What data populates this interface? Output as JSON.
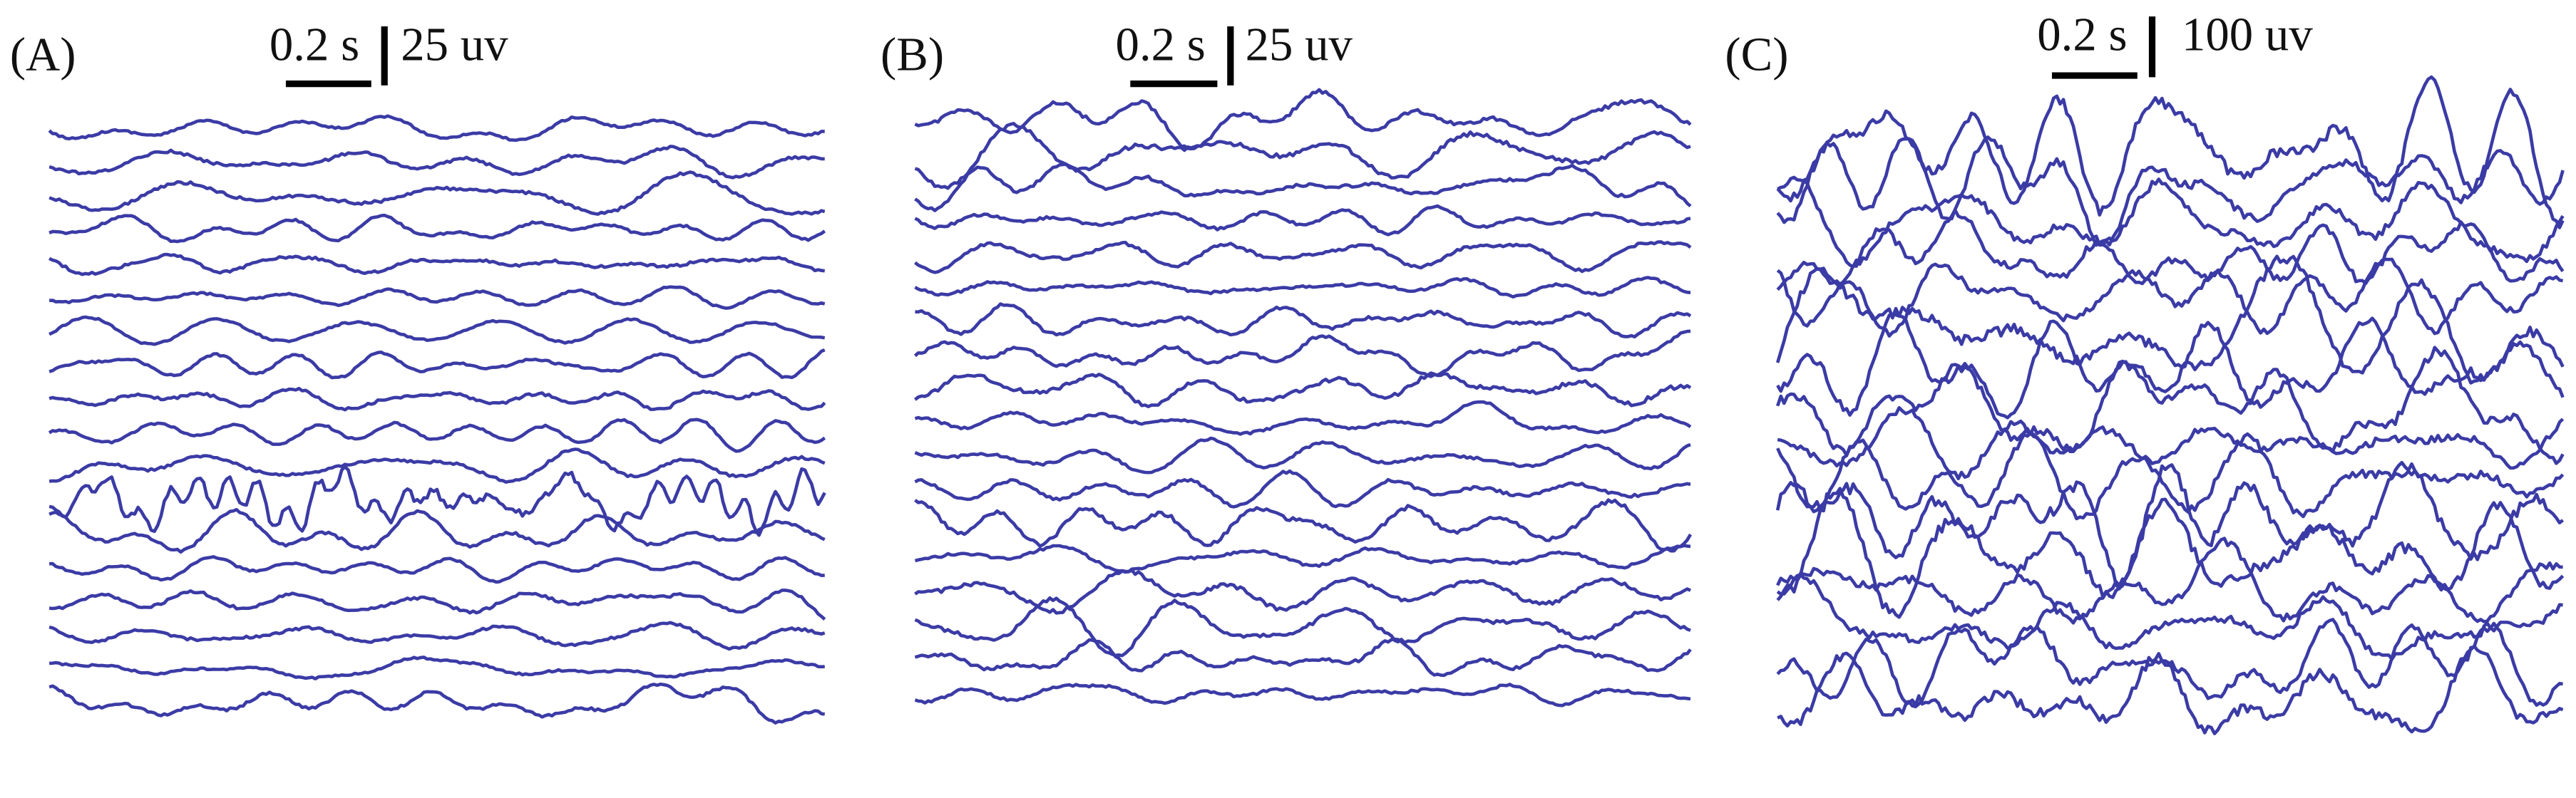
{
  "panels": [
    {
      "label": "(A)",
      "time_scale": "0.2 s",
      "amplitude_scale": "25 uv"
    },
    {
      "label": "(B)",
      "time_scale": "0.2 s",
      "amplitude_scale": "25 uv"
    },
    {
      "label": "(C)",
      "time_scale": "0.2 s",
      "amplitude_scale": "100 uv"
    }
  ]
}
